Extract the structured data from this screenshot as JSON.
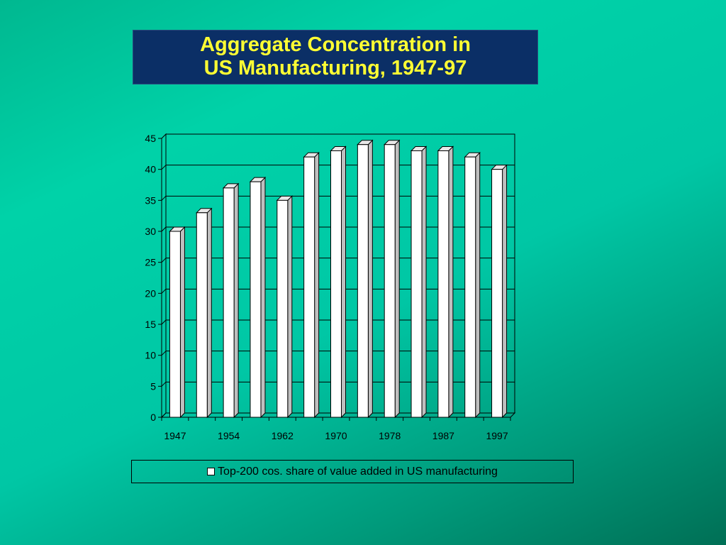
{
  "title_lines": [
    "Aggregate Concentration in",
    "US Manufacturing, 1947-97"
  ],
  "colors": {
    "title_bg": "#0b2f66",
    "title_text": "#ffff33",
    "bar_front": "#ffffff",
    "bar_side": "#bfbfbf",
    "bar_top": "#e8e8e8"
  },
  "chart_data": {
    "type": "bar",
    "categories": [
      "1947",
      "",
      "1954",
      "",
      "1962",
      "",
      "1970",
      "",
      "1978",
      "",
      "1987",
      "",
      "1997"
    ],
    "series": [
      {
        "name": "Top-200 cos. share of value added in US manufacturing",
        "values": [
          30,
          33,
          37,
          38,
          35,
          42,
          43,
          44,
          44,
          43,
          43,
          42,
          40
        ]
      }
    ],
    "yticks": [
      0,
      5,
      10,
      15,
      20,
      25,
      30,
      35,
      40,
      45
    ],
    "ylim": [
      0,
      45
    ],
    "grid": true,
    "legend_position": "bottom"
  }
}
